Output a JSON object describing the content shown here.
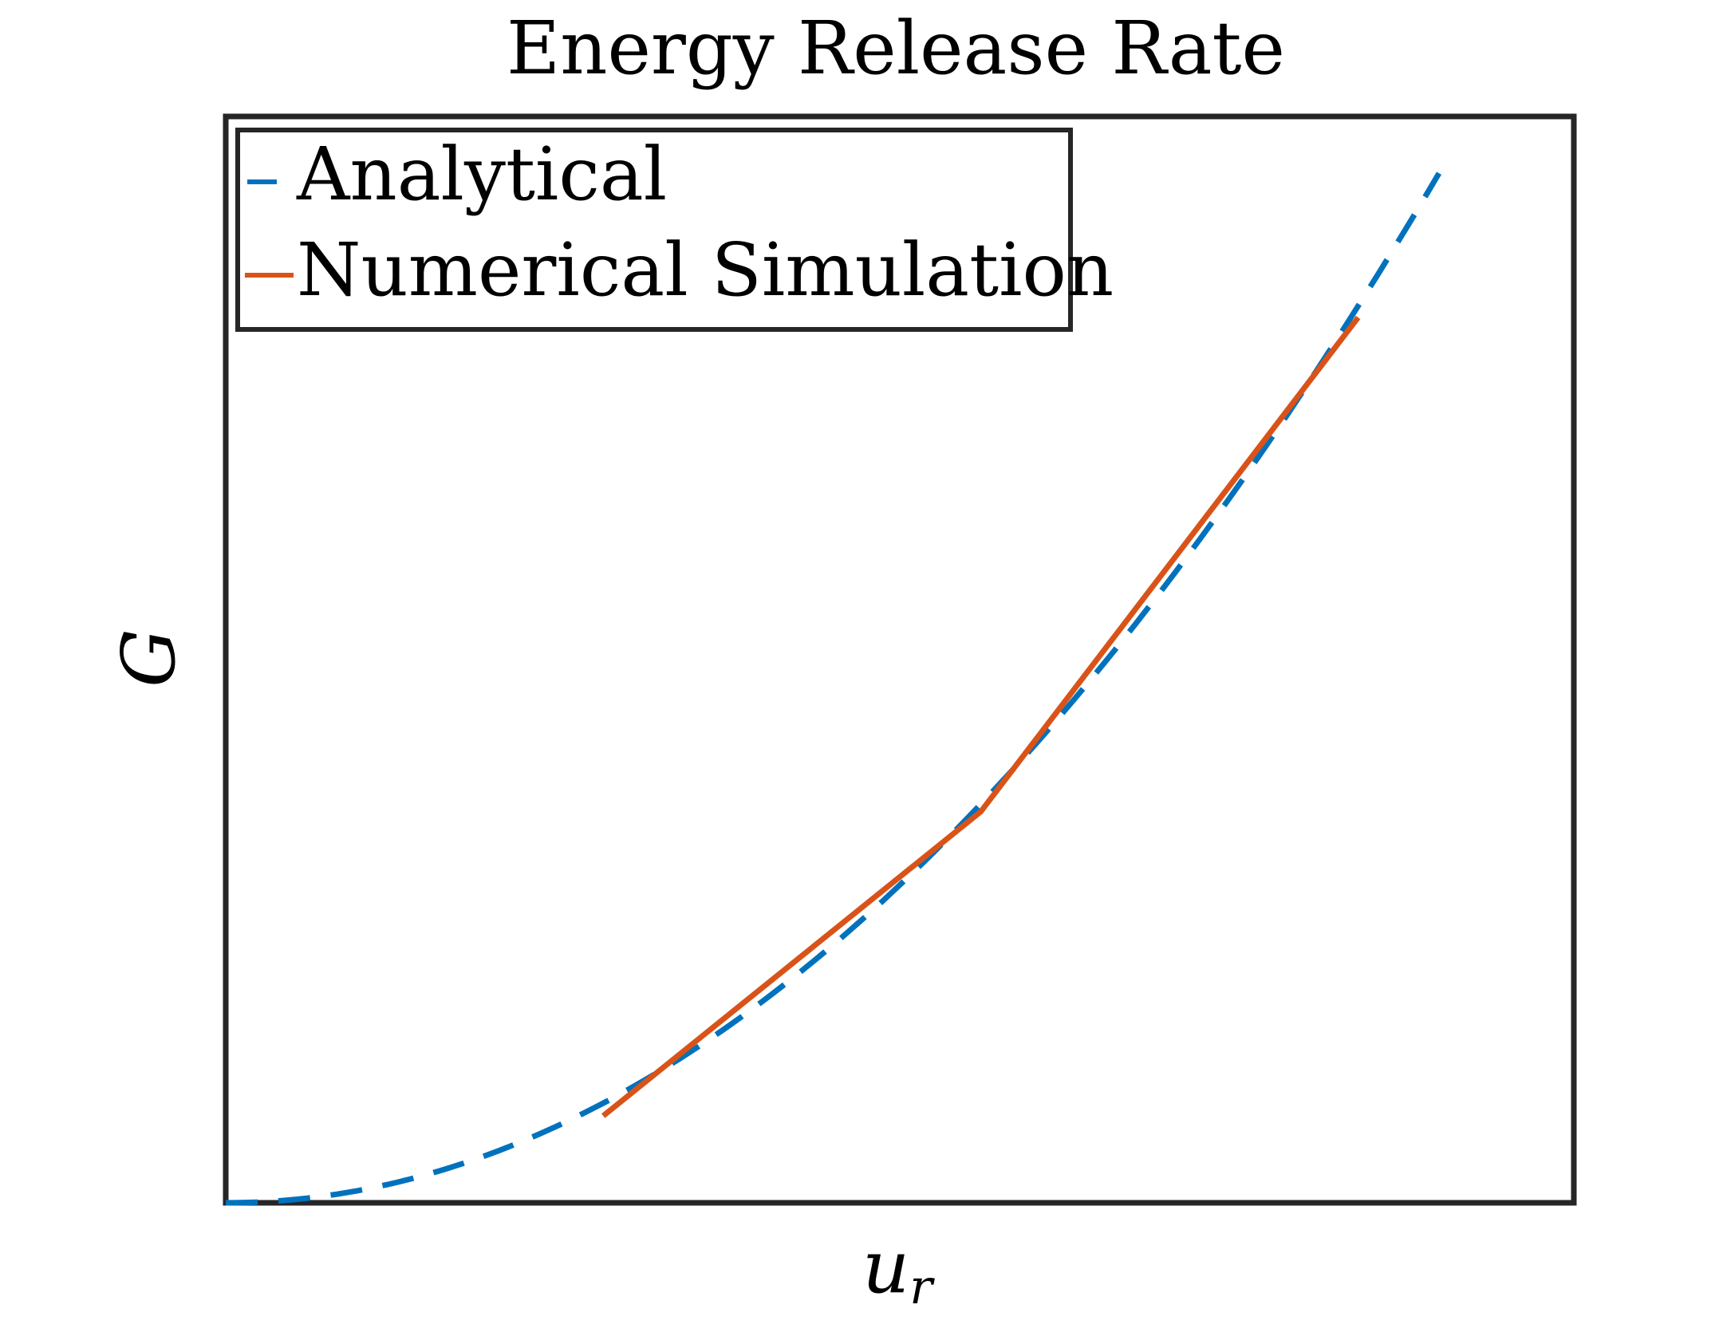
{
  "chart_data": {
    "type": "line",
    "title": "Energy Release Rate",
    "xlabel": "u",
    "xlabel_subscript": "r",
    "ylabel": "G",
    "xlim": [
      0,
      1
    ],
    "ylim": [
      0,
      1
    ],
    "xticks": [],
    "yticks": [],
    "grid": false,
    "legend_position": "top-left",
    "series": [
      {
        "name": "Analytical",
        "style": "dashed",
        "color": "#0072BD",
        "x": [
          0.0,
          0.1,
          0.2,
          0.3,
          0.4,
          0.5,
          0.6,
          0.7,
          0.8,
          0.9
        ],
        "y": [
          0.0,
          0.0117,
          0.0468,
          0.1053,
          0.1872,
          0.2925,
          0.4212,
          0.5733,
          0.7488,
          0.9477
        ]
      },
      {
        "name": "Numerical Simulation",
        "style": "solid",
        "color": "#D95319",
        "x": [
          0.28,
          0.56,
          0.84
        ],
        "y": [
          0.08,
          0.36,
          0.815
        ]
      }
    ]
  }
}
